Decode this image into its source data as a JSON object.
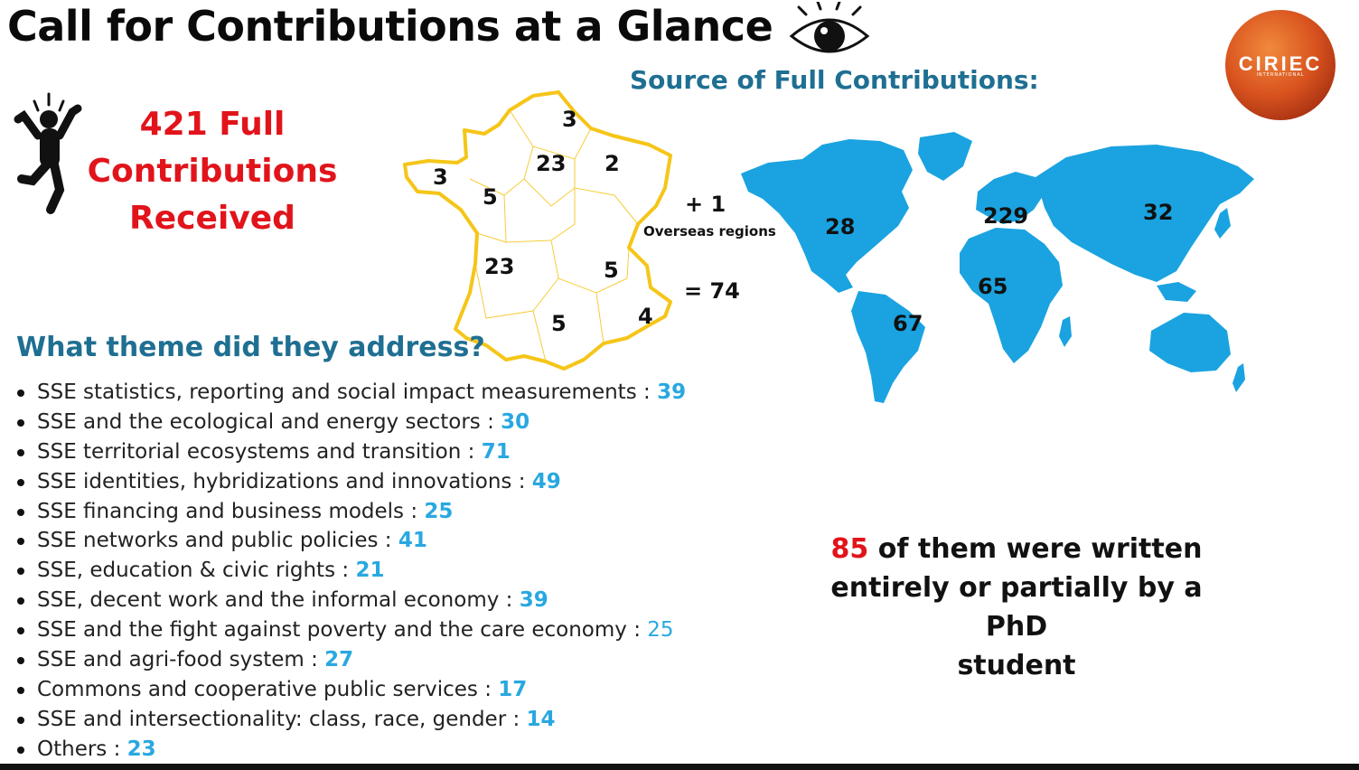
{
  "title": "Call for Contributions at a Glance",
  "logo": {
    "text": "CIRIEC",
    "subtext": "INTERNATIONAL"
  },
  "total": {
    "line1": "421 Full",
    "line2": "Contributions",
    "line3": "Received"
  },
  "source_heading": "Source of Full Contributions:",
  "france": {
    "regions": [
      "3",
      "23",
      "2",
      "3",
      "5",
      "23",
      "5",
      "5",
      "4"
    ],
    "overseas_plus": "+  1",
    "overseas_label": "Overseas regions",
    "total": "= 74"
  },
  "world": {
    "north_america": "28",
    "europe": "229",
    "asia": "32",
    "africa": "65",
    "south_america": "67"
  },
  "theme_heading": "What theme did they address?",
  "themes": [
    {
      "label": "SSE statistics, reporting and social impact measurements : ",
      "count": "39"
    },
    {
      "label": "SSE and the ecological and energy sectors : ",
      "count": "30"
    },
    {
      "label": "SSE territorial ecosystems and transition : ",
      "count": "71"
    },
    {
      "label": "SSE identities, hybridizations and innovations : ",
      "count": "49"
    },
    {
      "label": "SSE financing and business models : ",
      "count": "25"
    },
    {
      "label": "SSE networks and public policies : ",
      "count": "41"
    },
    {
      "label": "SSE, education & civic rights : ",
      "count": "21"
    },
    {
      "label": "SSE, decent work and the informal economy : ",
      "count": "39"
    },
    {
      "label": "SSE and the fight against poverty and the care economy : ",
      "count": "25"
    },
    {
      "label": "SSE and agri-food system : ",
      "count": "27"
    },
    {
      "label": "Commons and cooperative public services : ",
      "count": "17"
    },
    {
      "label": "SSE and intersectionality: class, race, gender : ",
      "count": "14"
    },
    {
      "label": "Others : ",
      "count": "23"
    }
  ],
  "phd": {
    "count": "85",
    "line1_rest": " of them were written",
    "line2": "entirely or partially by a PhD",
    "line3": "student"
  },
  "colors": {
    "accent_red": "#e1141b",
    "heading_blue": "#1f6f92",
    "count_blue": "#29a8e0",
    "map_blue": "#1aa3e0",
    "france_outline": "#f5c518"
  }
}
